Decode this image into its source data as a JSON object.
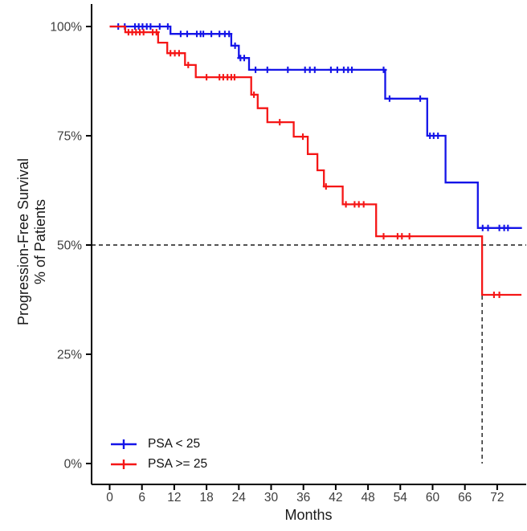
{
  "chart_data": {
    "type": "line",
    "subtype": "kaplan-meier-step-survival",
    "title": "",
    "xlabel": "Months",
    "ylabel_line1": "Progression-Free Survival",
    "ylabel_line2": "% of Patients",
    "x_ticks": [
      0,
      6,
      12,
      18,
      24,
      30,
      36,
      42,
      48,
      54,
      60,
      66,
      72
    ],
    "y_ticks": [
      {
        "value": 100,
        "label": "100%"
      },
      {
        "value": 75,
        "label": "75%"
      },
      {
        "value": 50,
        "label": "50%"
      },
      {
        "value": 25,
        "label": "25%"
      },
      {
        "value": 0,
        "label": "0%"
      }
    ],
    "xlim": [
      0,
      77
    ],
    "ylim": [
      0,
      100
    ],
    "grid": "off",
    "legend_position": "inside-bottom-left",
    "axis_color": "#000000",
    "tick_label_color": "#3d3d3d",
    "reference_lines": {
      "horizontal_median_survival": {
        "y": 50,
        "style": "dashed",
        "color": "#1a1a1a"
      },
      "vertical_median_time": {
        "x": 69.2,
        "y_from": 0,
        "y_to": 50,
        "style": "dashed",
        "color": "#1a1a1a"
      }
    },
    "series": [
      {
        "name": "PSA < 25",
        "color": "#1414e8",
        "end_time": 76.6,
        "steps": [
          [
            0,
            100
          ],
          [
            11.3,
            98.3
          ],
          [
            22.6,
            95.6
          ],
          [
            24,
            92.8
          ],
          [
            25.9,
            90.1
          ],
          [
            51.2,
            83.5
          ],
          [
            59,
            75
          ],
          [
            62.4,
            64.3
          ],
          [
            68.4,
            53.9
          ]
        ],
        "censors": [
          [
            1.6,
            100
          ],
          [
            2.8,
            100
          ],
          [
            4.7,
            100
          ],
          [
            5.4,
            100
          ],
          [
            6.1,
            100
          ],
          [
            6.9,
            100
          ],
          [
            7.6,
            100
          ],
          [
            9.3,
            100
          ],
          [
            10.8,
            100
          ],
          [
            13.2,
            98.3
          ],
          [
            14.4,
            98.3
          ],
          [
            16.2,
            98.3
          ],
          [
            16.9,
            98.3
          ],
          [
            17.4,
            98.3
          ],
          [
            18.9,
            98.3
          ],
          [
            20.4,
            98.3
          ],
          [
            21.4,
            98.3
          ],
          [
            22.2,
            98.3
          ],
          [
            23.3,
            95.6
          ],
          [
            24.3,
            92.8
          ],
          [
            25,
            92.8
          ],
          [
            27.1,
            90.1
          ],
          [
            29.3,
            90.1
          ],
          [
            33.1,
            90.1
          ],
          [
            36.3,
            90.1
          ],
          [
            37.2,
            90.1
          ],
          [
            38.1,
            90.1
          ],
          [
            41.1,
            90.1
          ],
          [
            42.3,
            90.1
          ],
          [
            43.5,
            90.1
          ],
          [
            44.3,
            90.1
          ],
          [
            45,
            90.1
          ],
          [
            50.9,
            90.1
          ],
          [
            52,
            83.5
          ],
          [
            57.7,
            83.5
          ],
          [
            59.5,
            75
          ],
          [
            60.2,
            75
          ],
          [
            61,
            75
          ],
          [
            69.3,
            53.9
          ],
          [
            70.3,
            53.9
          ],
          [
            72.4,
            53.9
          ],
          [
            73.3,
            53.9
          ],
          [
            74,
            53.9
          ]
        ]
      },
      {
        "name": "PSA >= 25",
        "color": "#f51616",
        "end_time": 76.5,
        "steps": [
          [
            0,
            100
          ],
          [
            2.9,
            98.7
          ],
          [
            9,
            96.3
          ],
          [
            10.7,
            93.9
          ],
          [
            14,
            91.2
          ],
          [
            16,
            88.4
          ],
          [
            26.3,
            84.4
          ],
          [
            27.5,
            81.3
          ],
          [
            29.3,
            78.1
          ],
          [
            34.2,
            74.8
          ],
          [
            36.8,
            70.8
          ],
          [
            38.6,
            67.1
          ],
          [
            39.8,
            63.4
          ],
          [
            43.3,
            59.3
          ],
          [
            49.5,
            52
          ],
          [
            69.2,
            38.6
          ]
        ],
        "censors": [
          [
            3.5,
            98.7
          ],
          [
            4.2,
            98.7
          ],
          [
            4.9,
            98.7
          ],
          [
            5.6,
            98.7
          ],
          [
            6.3,
            98.7
          ],
          [
            8,
            98.7
          ],
          [
            8.7,
            98.7
          ],
          [
            11.3,
            93.9
          ],
          [
            12.1,
            93.9
          ],
          [
            12.9,
            93.9
          ],
          [
            14.6,
            91.2
          ],
          [
            18,
            88.4
          ],
          [
            20.4,
            88.4
          ],
          [
            21.1,
            88.4
          ],
          [
            21.9,
            88.4
          ],
          [
            22.6,
            88.4
          ],
          [
            23.2,
            88.4
          ],
          [
            26.8,
            84.4
          ],
          [
            31.6,
            78.1
          ],
          [
            35.9,
            74.8
          ],
          [
            40.2,
            63.4
          ],
          [
            43.9,
            59.3
          ],
          [
            45.5,
            59.3
          ],
          [
            46.3,
            59.3
          ],
          [
            47.2,
            59.3
          ],
          [
            50.9,
            52
          ],
          [
            53.5,
            52
          ],
          [
            54.3,
            52
          ],
          [
            55.7,
            52
          ],
          [
            71.4,
            38.6
          ],
          [
            72.4,
            38.6
          ]
        ]
      }
    ]
  }
}
